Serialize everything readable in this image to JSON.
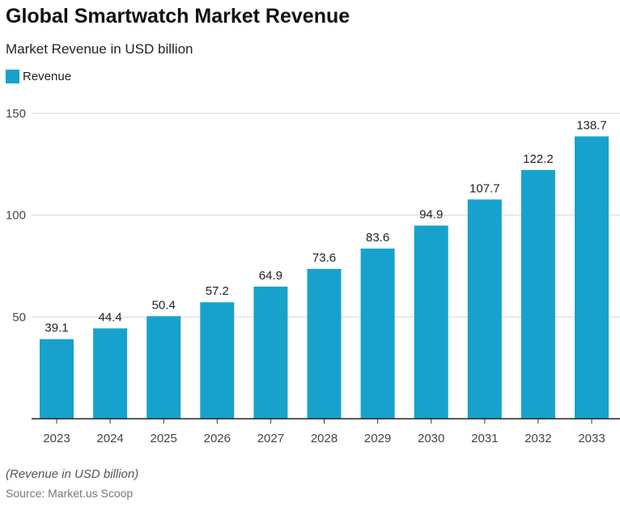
{
  "title": "Global Smartwatch Market Revenue",
  "subtitle": "Market Revenue in USD billion",
  "note": "(Revenue in USD billion)",
  "source": "Source: Market.us Scoop",
  "chart_data": {
    "type": "bar",
    "title": "Global Smartwatch Market Revenue",
    "subtitle": "Market Revenue in USD billion",
    "categories": [
      "2023",
      "2024",
      "2025",
      "2026",
      "2027",
      "2028",
      "2029",
      "2030",
      "2031",
      "2032",
      "2033"
    ],
    "series": [
      {
        "name": "Revenue",
        "values": [
          39.1,
          44.4,
          50.4,
          57.2,
          64.9,
          73.6,
          83.6,
          94.9,
          107.7,
          122.2,
          138.7
        ],
        "color": "#17a2cd"
      }
    ],
    "ylim": [
      0,
      150
    ],
    "yticks": [
      50,
      100,
      150
    ],
    "grid": true,
    "legend": "top-left",
    "data_labels": true
  }
}
